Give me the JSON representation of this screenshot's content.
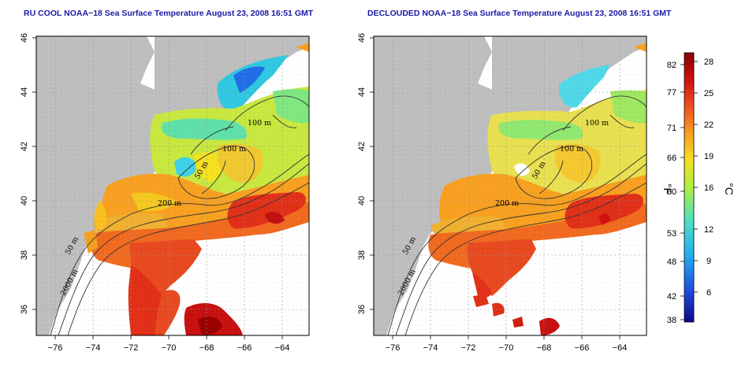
{
  "maps": [
    {
      "title": "RU COOL NOAA−18 Sea Surface Temperature August 23, 2008 16:51 GMT",
      "contour_labels": [
        "100 m",
        "100 m",
        "50 m",
        "200 m",
        "50 m",
        "2000 m"
      ]
    },
    {
      "title": "DECLOUDED NOAA−18 Sea Surface Temperature August 23, 2008 16:51 GMT",
      "contour_labels": [
        "100 m",
        "100 m",
        "50 m",
        "200 m",
        "50 m",
        "2000 m"
      ]
    }
  ],
  "axes": {
    "x_ticks": [
      "−76",
      "−74",
      "−72",
      "−70",
      "−68",
      "−66",
      "−64"
    ],
    "y_ticks": [
      "36",
      "38",
      "40",
      "42",
      "44",
      "46"
    ]
  },
  "colorbar": {
    "fahrenheit_label": "°F",
    "celsius_label": "°C",
    "fahrenheit_ticks": [
      "82",
      "77",
      "71",
      "66",
      "60",
      "53",
      "48",
      "42",
      "38"
    ],
    "celsius_ticks": [
      "28",
      "25",
      "22",
      "19",
      "16",
      "12",
      "9",
      "6"
    ],
    "colors": [
      "#0a0a8c",
      "#1f4fe0",
      "#20b0f0",
      "#50e0c0",
      "#b0ee40",
      "#f5e020",
      "#f8a020",
      "#f05020",
      "#d01010",
      "#8a0000"
    ]
  }
}
